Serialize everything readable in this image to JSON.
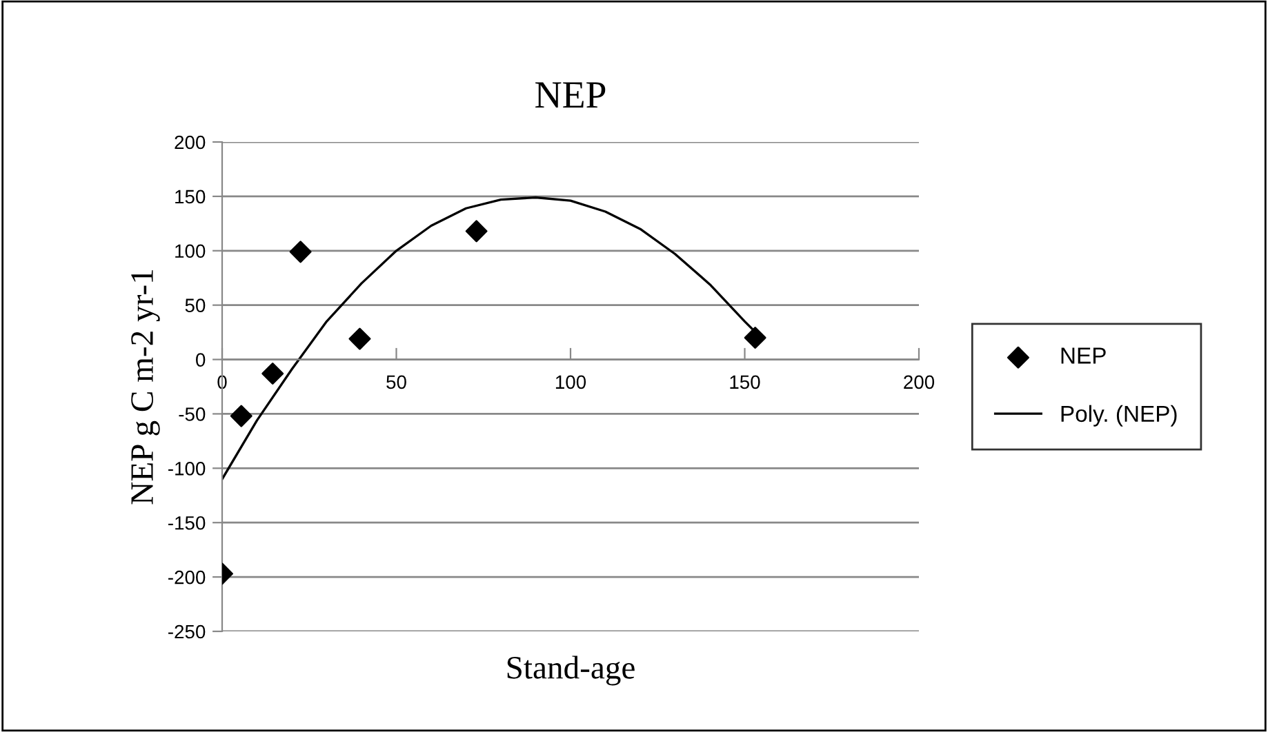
{
  "chart_data": {
    "type": "scatter",
    "title": "NEP",
    "xlabel": "Stand-age",
    "ylabel": "NEP g C m-2 yr-1",
    "xlim": [
      0,
      200
    ],
    "xticks": [
      0,
      50,
      100,
      150,
      200
    ],
    "ylim": [
      -250,
      200
    ],
    "yticks": [
      -250,
      -200,
      -150,
      -100,
      -50,
      0,
      50,
      100,
      150,
      200
    ],
    "grid": "y",
    "legend": "right",
    "series": [
      {
        "name": "NEP",
        "color": "#000000",
        "marker": "diamond",
        "x": [
          0,
          5.5,
          14.5,
          22.5,
          39.5,
          73,
          153
        ],
        "values": [
          -197,
          -52,
          -13,
          99,
          19,
          118,
          20
        ]
      },
      {
        "name": "Poly. (NEP)",
        "type": "line",
        "color": "#000000",
        "marker": "none",
        "line_style": "solid",
        "x": [
          0,
          10,
          20,
          30,
          40,
          50,
          60,
          70,
          80,
          90,
          100,
          110,
          120,
          130,
          140,
          150,
          155
        ],
        "values": [
          -110,
          -56,
          -9,
          35,
          70,
          100,
          123,
          139,
          147,
          149,
          146,
          136,
          120,
          97,
          69,
          35,
          19
        ]
      }
    ]
  }
}
